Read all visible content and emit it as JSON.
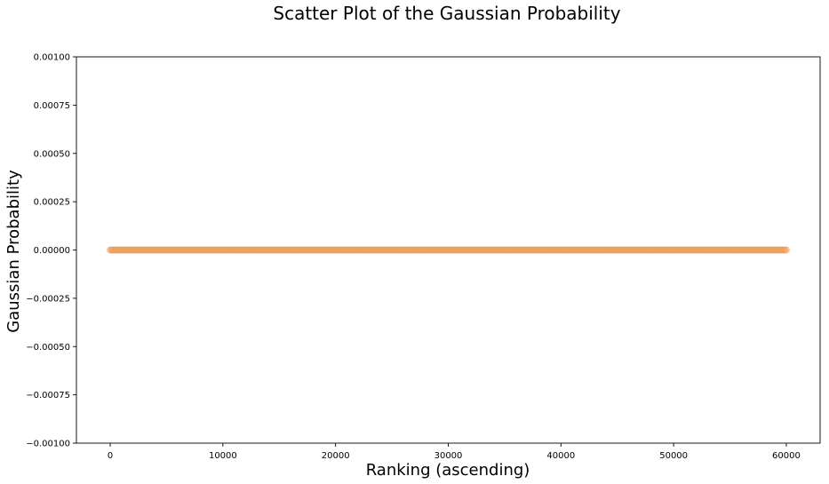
{
  "chart_data": {
    "type": "scatter",
    "title": "Scatter Plot of the Gaussian Probability",
    "xlabel": "Ranking (ascending)",
    "ylabel": "Gaussian Probability",
    "xlim": [
      -3000,
      63000
    ],
    "ylim": [
      -0.001,
      0.001
    ],
    "x_ticks": [
      0,
      10000,
      20000,
      30000,
      40000,
      50000,
      60000
    ],
    "x_tick_labels": [
      "0",
      "10000",
      "20000",
      "30000",
      "40000",
      "50000",
      "60000"
    ],
    "y_ticks": [
      -0.001,
      -0.00075,
      -0.0005,
      -0.00025,
      0,
      0.00025,
      0.0005,
      0.00075,
      0.001
    ],
    "y_tick_labels": [
      "−0.00100",
      "−0.00075",
      "−0.00050",
      "−0.00025",
      "0.00000",
      "0.00025",
      "0.00050",
      "0.00075",
      "0.00100"
    ],
    "grid": false,
    "series": [
      {
        "color": "#f4a460",
        "x_range": [
          0,
          60000
        ],
        "y_value": 0.0,
        "description": "approximately 60000 points, all with y values of about 0, spanning x from 0 to 60000"
      }
    ],
    "colors": {
      "marker_fill": "#f4a460",
      "marker_edge": "#c8915a"
    }
  }
}
